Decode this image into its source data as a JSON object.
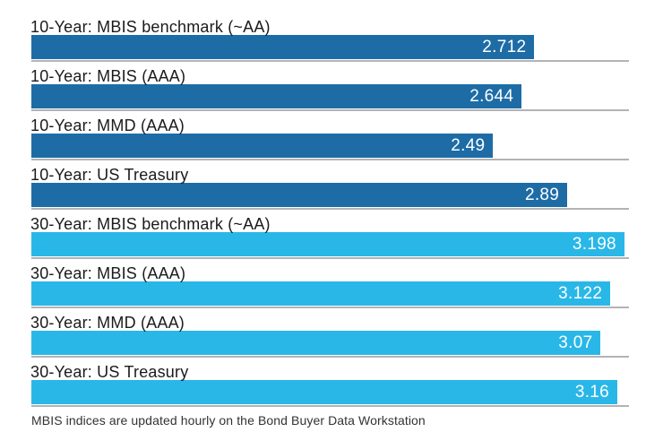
{
  "chart_data": {
    "type": "bar",
    "orientation": "horizontal",
    "title": "",
    "categories": [
      "10-Year: MBIS benchmark (~AA)",
      "10-Year: MBIS (AAA)",
      "10-Year: MMD (AAA)",
      "10-Year: US Treasury",
      "30-Year: MBIS benchmark (~AA)",
      "30-Year: MBIS (AAA)",
      "30-Year: MMD (AAA)",
      "30-Year: US Treasury"
    ],
    "values": [
      2.712,
      2.644,
      2.49,
      2.89,
      3.198,
      3.122,
      3.07,
      3.16
    ],
    "groups": [
      "10-year",
      "10-year",
      "10-year",
      "10-year",
      "30-year",
      "30-year",
      "30-year",
      "30-year"
    ],
    "colors": {
      "10-year": "#1E6CA6",
      "30-year": "#29B7E8"
    },
    "value_label_color": "#ffffff",
    "label_color": "#1b1b1d",
    "baseline_color": "#b3b3b6",
    "xlim": [
      0,
      3.2225
    ],
    "grid": "per-row baseline only",
    "legend": "none",
    "value_labels_position": "inside-end",
    "footnote": "MBIS indices are updated hourly on the Bond Buyer Data Workstation"
  }
}
